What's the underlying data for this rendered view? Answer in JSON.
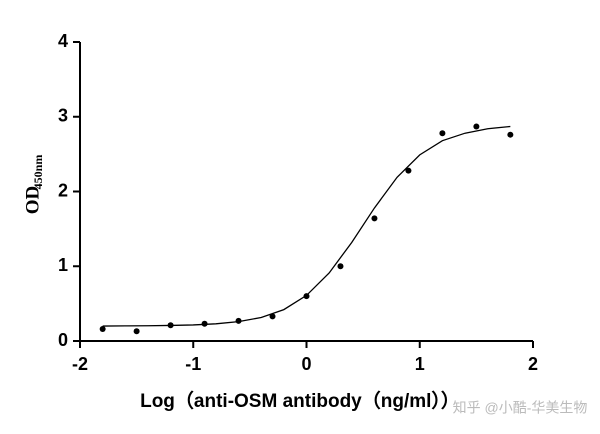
{
  "chart_data": {
    "type": "scatter",
    "x": [
      -1.8,
      -1.5,
      -1.2,
      -0.9,
      -0.6,
      -0.3,
      0,
      0.3,
      0.6,
      0.9,
      1.2,
      1.5,
      1.8
    ],
    "values": [
      0.16,
      0.13,
      0.21,
      0.23,
      0.27,
      0.33,
      0.6,
      1.0,
      1.64,
      2.28,
      2.78,
      2.87,
      2.76
    ],
    "curve": {
      "x": [
        -1.8,
        -1.6,
        -1.4,
        -1.2,
        -1.0,
        -0.8,
        -0.6,
        -0.4,
        -0.2,
        0,
        0.2,
        0.4,
        0.6,
        0.8,
        1.0,
        1.2,
        1.4,
        1.6,
        1.8
      ],
      "values": [
        0.2,
        0.202,
        0.204,
        0.208,
        0.215,
        0.23,
        0.259,
        0.315,
        0.42,
        0.61,
        0.91,
        1.32,
        1.78,
        2.19,
        2.49,
        2.68,
        2.78,
        2.84,
        2.87
      ]
    },
    "color": "#000000",
    "xlim": [
      -2,
      2
    ],
    "ylim": [
      0,
      4
    ],
    "xticks": [
      -2,
      -1,
      0,
      1,
      2
    ],
    "yticks": [
      0,
      1,
      2,
      3,
      4
    ],
    "xlabel": "Log（anti-OSM antibody（ng/ml））",
    "ylabel": {
      "text": "OD",
      "subscript": "450nm"
    }
  },
  "watermark": "知乎 @小酷-华美生物"
}
